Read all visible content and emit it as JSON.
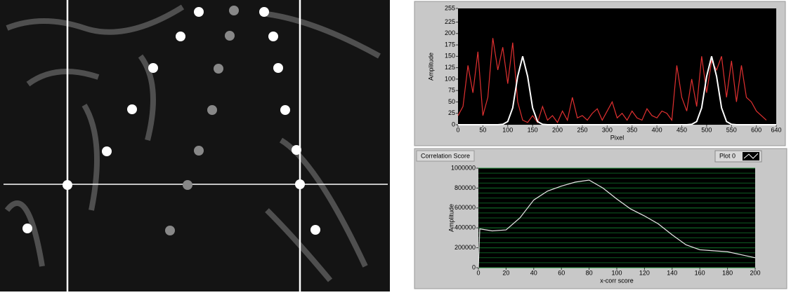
{
  "chart_data": [
    {
      "type": "line",
      "xlabel": "Pixel",
      "ylabel": "Amplitude",
      "xlim": [
        0,
        640
      ],
      "ylim": [
        0,
        255
      ],
      "xticks": [
        0,
        50,
        100,
        150,
        200,
        250,
        300,
        350,
        400,
        450,
        500,
        550,
        600,
        640
      ],
      "yticks": [
        0,
        25,
        50,
        75,
        100,
        125,
        150,
        175,
        200,
        225,
        255
      ],
      "grid": false,
      "series": [
        {
          "color": "#e03030",
          "x": [
            0,
            10,
            20,
            30,
            40,
            50,
            60,
            70,
            80,
            90,
            100,
            110,
            120,
            130,
            140,
            150,
            160,
            170,
            180,
            190,
            200,
            210,
            220,
            230,
            240,
            250,
            260,
            270,
            280,
            290,
            300,
            310,
            320,
            330,
            340,
            350,
            360,
            370,
            380,
            390,
            400,
            410,
            420,
            430,
            440,
            450,
            460,
            470,
            480,
            490,
            500,
            510,
            520,
            530,
            540,
            550,
            560,
            570,
            580,
            590,
            600,
            610,
            620
          ],
          "values": [
            20,
            40,
            130,
            70,
            160,
            20,
            60,
            190,
            120,
            170,
            90,
            180,
            50,
            10,
            5,
            20,
            5,
            40,
            10,
            20,
            5,
            30,
            10,
            60,
            15,
            20,
            10,
            25,
            35,
            10,
            30,
            50,
            15,
            25,
            10,
            30,
            15,
            10,
            35,
            20,
            15,
            30,
            25,
            10,
            130,
            60,
            30,
            100,
            40,
            150,
            70,
            140,
            120,
            150,
            60,
            140,
            50,
            130,
            60,
            50,
            30,
            20,
            10
          ]
        },
        {
          "color": "#ffffff",
          "x": [
            0,
            80,
            90,
            100,
            110,
            120,
            130,
            140,
            150,
            160,
            170,
            180,
            460,
            470,
            480,
            490,
            500,
            510,
            520,
            530,
            540,
            550,
            560,
            640
          ],
          "values": [
            0,
            0,
            1,
            7,
            37,
            106,
            150,
            106,
            37,
            7,
            1,
            0,
            0,
            1,
            7,
            37,
            106,
            150,
            106,
            37,
            7,
            1,
            0,
            0
          ]
        }
      ]
    },
    {
      "type": "line",
      "title": "Correlation Score",
      "xlabel": "x-corr score",
      "ylabel": "Amplitude",
      "xlim": [
        0,
        200
      ],
      "ylim": [
        0,
        1000000
      ],
      "xticks": [
        0,
        20,
        40,
        60,
        80,
        100,
        120,
        140,
        160,
        180,
        200
      ],
      "yticks": [
        0,
        200000,
        400000,
        600000,
        800000,
        1000000
      ],
      "grid": true,
      "series": [
        {
          "name": "Plot 0",
          "color": "#e8e8e8",
          "x": [
            0,
            1,
            10,
            20,
            30,
            40,
            50,
            60,
            70,
            80,
            90,
            100,
            110,
            120,
            130,
            140,
            150,
            160,
            170,
            180,
            190,
            200
          ],
          "values": [
            0,
            390000,
            370000,
            380000,
            500000,
            680000,
            770000,
            820000,
            860000,
            880000,
            800000,
            690000,
            590000,
            520000,
            440000,
            330000,
            230000,
            180000,
            170000,
            160000,
            130000,
            100000
          ]
        }
      ]
    }
  ]
}
